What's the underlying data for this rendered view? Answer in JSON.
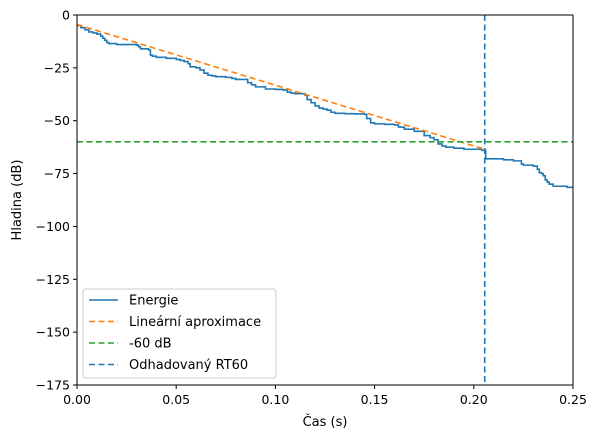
{
  "chart_data": {
    "type": "line",
    "xlabel": "Čas (s)",
    "ylabel": "Hladina (dB)",
    "xlim": [
      0.0,
      0.25
    ],
    "ylim": [
      -175,
      0
    ],
    "x_ticks": [
      "0.00",
      "0.05",
      "0.10",
      "0.15",
      "0.20",
      "0.25"
    ],
    "y_ticks": [
      "0",
      "−25",
      "−50",
      "−75",
      "−100",
      "−125",
      "−150",
      "−175"
    ],
    "x_tick_values": [
      0.0,
      0.05,
      0.1,
      0.15,
      0.2,
      0.25
    ],
    "y_tick_values": [
      0,
      -25,
      -50,
      -75,
      -100,
      -125,
      -150,
      -175
    ],
    "grid": false,
    "legend_position": "lower-left",
    "series": [
      {
        "name": "Energie",
        "style": "solid",
        "color": "#1f77b4",
        "x": [
          0.0,
          0.002,
          0.004,
          0.006,
          0.008,
          0.01,
          0.012,
          0.013,
          0.014,
          0.015,
          0.016,
          0.02,
          0.025,
          0.03,
          0.031,
          0.032,
          0.036,
          0.037,
          0.038,
          0.04,
          0.045,
          0.05,
          0.052,
          0.054,
          0.056,
          0.057,
          0.06,
          0.062,
          0.064,
          0.066,
          0.068,
          0.07,
          0.075,
          0.078,
          0.08,
          0.082,
          0.084,
          0.086,
          0.088,
          0.09,
          0.095,
          0.1,
          0.104,
          0.106,
          0.108,
          0.11,
          0.115,
          0.116,
          0.118,
          0.12,
          0.122,
          0.124,
          0.126,
          0.128,
          0.13,
          0.135,
          0.14,
          0.145,
          0.146,
          0.148,
          0.15,
          0.155,
          0.16,
          0.162,
          0.165,
          0.17,
          0.175,
          0.178,
          0.18,
          0.182,
          0.184,
          0.186,
          0.19,
          0.195,
          0.2,
          0.204,
          0.206,
          0.21,
          0.215,
          0.22,
          0.224,
          0.225,
          0.226,
          0.23,
          0.232,
          0.233,
          0.234,
          0.235,
          0.236,
          0.237,
          0.238,
          0.24,
          0.243,
          0.245,
          0.247,
          0.25
        ],
        "y": [
          -5,
          -6,
          -7,
          -8,
          -8.5,
          -9,
          -10,
          -11,
          -12,
          -13,
          -13.5,
          -14,
          -14,
          -14.2,
          -15,
          -16,
          -16.5,
          -19,
          -19.5,
          -20,
          -20.5,
          -21,
          -21.5,
          -22,
          -23,
          -24.5,
          -25,
          -26,
          -27.5,
          -28.5,
          -28.8,
          -29.2,
          -29.5,
          -30,
          -30.5,
          -30.5,
          -30.5,
          -32,
          -33,
          -34,
          -35,
          -35.2,
          -35.5,
          -36.5,
          -37,
          -37.2,
          -38,
          -40,
          -41.5,
          -43,
          -44,
          -44.5,
          -45,
          -46,
          -46.5,
          -46.7,
          -46.8,
          -47,
          -49,
          -51,
          -51.5,
          -51.7,
          -52,
          -53,
          -54,
          -55,
          -57,
          -58,
          -59,
          -61,
          -62,
          -62.5,
          -63,
          -63.5,
          -63.5,
          -64,
          -68,
          -68,
          -68.5,
          -69,
          -70.5,
          -71,
          -71,
          -71.5,
          -73,
          -74.5,
          -75,
          -76,
          -78,
          -79,
          -80,
          -81,
          -81,
          -81,
          -81.5,
          -82
        ]
      },
      {
        "name": "Lineární aproximace",
        "style": "dashed",
        "color": "#ff7f0e",
        "x": [
          0.0,
          0.2055
        ],
        "y": [
          -4.5,
          -63.5
        ]
      },
      {
        "name": "-60 dB",
        "style": "dashed",
        "color": "#2ca02c",
        "x": [
          0.0,
          0.25
        ],
        "y": [
          -60,
          -60
        ]
      }
    ],
    "vlines": [
      {
        "name": "Odhadovaný RT60",
        "style": "dashed",
        "color": "#1f77b4",
        "x": 0.2055
      }
    ]
  },
  "legend": {
    "items": [
      "Energie",
      "Lineární aproximace",
      "-60 dB",
      "Odhadovaný RT60"
    ]
  }
}
